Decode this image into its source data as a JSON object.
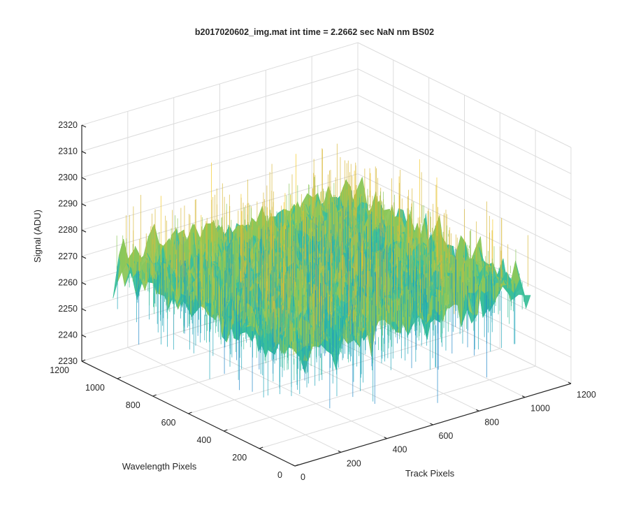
{
  "chart_data": {
    "type": "surface",
    "title": "b2017020602_img.mat int time = 2.2662 sec  NaN nm BS02",
    "xlabel": "Track Pixels",
    "ylabel": "Wavelength Pixels",
    "zlabel": "Signal (ADU)",
    "xlim": [
      0,
      1200
    ],
    "ylim": [
      0,
      1200
    ],
    "zlim": [
      2230,
      2320
    ],
    "x_ticks": [
      "0",
      "200",
      "400",
      "600",
      "800",
      "1000",
      "1200"
    ],
    "y_ticks": [
      "0",
      "200",
      "400",
      "600",
      "800",
      "1000",
      "1200"
    ],
    "z_ticks": [
      "2230",
      "2240",
      "2250",
      "2260",
      "2270",
      "2280",
      "2290",
      "2300",
      "2310",
      "2320"
    ],
    "grid": true,
    "surface": {
      "x_range": [
        0,
        1024
      ],
      "y_range": [
        0,
        1024
      ],
      "mean_signal": 2272,
      "min_signal": 2232,
      "max_signal": 2312,
      "colormap": [
        "#1f86c8",
        "#1fa4b8",
        "#3bbf9a",
        "#8cc75a",
        "#d8b93a",
        "#f5c823"
      ]
    }
  }
}
